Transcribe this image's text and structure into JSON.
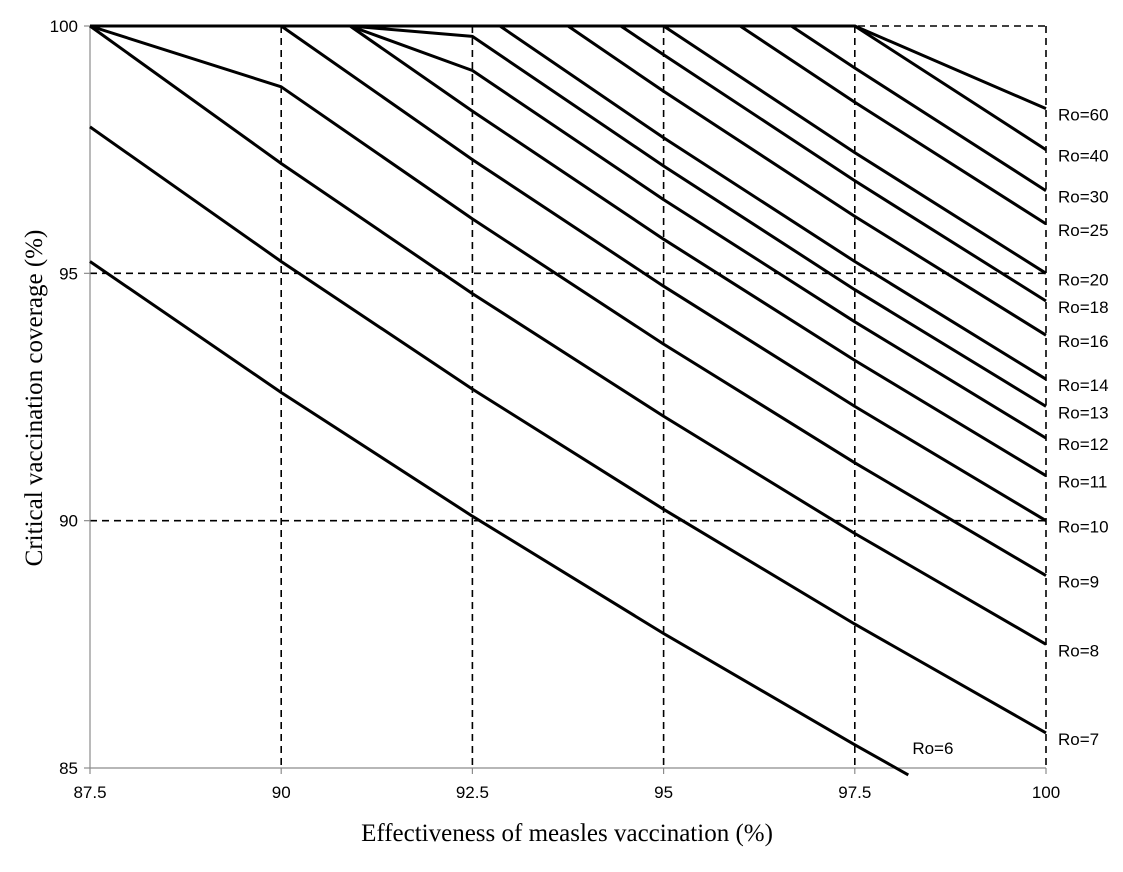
{
  "chart_data": {
    "type": "line",
    "title": "",
    "xlabel": "Effectiveness of measles vaccination (%)",
    "ylabel": "Critical  vaccination  coverage  (%)",
    "xlim": [
      87.5,
      100
    ],
    "ylim": [
      85,
      100
    ],
    "x_ticks": [
      "87.5",
      "90",
      "92.5",
      "95",
      "97.5",
      "100"
    ],
    "y_ticks": [
      "85",
      "90",
      "95",
      "100"
    ],
    "grid": true,
    "series": [
      {
        "name": "Ro=6",
        "x": [
          87.5,
          90,
          92.5,
          95,
          97.5,
          98.2
        ],
        "y": [
          95.24,
          92.59,
          90.09,
          87.72,
          85.47,
          84.86
        ]
      },
      {
        "name": "Ro=7",
        "x": [
          87.5,
          90,
          92.5,
          95,
          97.5,
          100
        ],
        "y": [
          97.96,
          95.24,
          92.66,
          90.23,
          87.91,
          85.71
        ]
      },
      {
        "name": "Ro=8",
        "x": [
          87.5,
          90,
          92.5,
          95,
          97.5,
          100
        ],
        "y": [
          100,
          97.22,
          94.59,
          92.11,
          89.74,
          87.5
        ]
      },
      {
        "name": "Ro=9",
        "x": [
          87.5,
          90,
          92.5,
          95,
          97.5,
          100
        ],
        "y": [
          100,
          98.77,
          96.1,
          93.57,
          91.17,
          88.89
        ]
      },
      {
        "name": "Ro=10",
        "x": [
          87.5,
          90.0,
          92.5,
          95,
          97.5,
          100
        ],
        "y": [
          100,
          100,
          97.3,
          94.74,
          92.31,
          90.0
        ]
      },
      {
        "name": "Ro=11",
        "x": [
          87.5,
          90.9,
          92.5,
          95,
          97.5,
          100
        ],
        "y": [
          100,
          100,
          98.28,
          95.69,
          93.24,
          90.91
        ]
      },
      {
        "name": "Ro=12",
        "x": [
          87.5,
          90.9,
          92.5,
          95,
          97.5,
          100
        ],
        "y": [
          100,
          100,
          99.1,
          96.49,
          94.02,
          91.67
        ]
      },
      {
        "name": "Ro=13",
        "x": [
          87.5,
          90.9,
          92.5,
          95,
          97.5,
          100
        ],
        "y": [
          100,
          100,
          99.79,
          97.17,
          94.67,
          92.31
        ]
      },
      {
        "name": "Ro=14",
        "x": [
          87.5,
          90.9,
          92.86,
          95,
          97.5,
          100
        ],
        "y": [
          100,
          100,
          100,
          97.74,
          95.24,
          92.86
        ]
      },
      {
        "name": "Ro=16",
        "x": [
          87.5,
          90.9,
          93.75,
          95,
          97.5,
          100
        ],
        "y": [
          100,
          100,
          100,
          98.68,
          96.15,
          93.75
        ]
      },
      {
        "name": "Ro=18",
        "x": [
          87.5,
          90.9,
          94.44,
          95,
          97.5,
          100
        ],
        "y": [
          100,
          100,
          100,
          99.42,
          96.87,
          94.44
        ]
      },
      {
        "name": "Ro=20",
        "x": [
          87.5,
          90.9,
          95,
          97.5,
          100
        ],
        "y": [
          100,
          100,
          100,
          97.44,
          95.0
        ]
      },
      {
        "name": "Ro=25",
        "x": [
          87.5,
          90.9,
          96,
          97.5,
          100
        ],
        "y": [
          100,
          100,
          100,
          98.46,
          96.0
        ]
      },
      {
        "name": "Ro=30",
        "x": [
          87.5,
          90.9,
          96.67,
          97.5,
          100
        ],
        "y": [
          100,
          100,
          100,
          99.15,
          96.67
        ]
      },
      {
        "name": "Ro=40",
        "x": [
          87.5,
          97.5,
          100
        ],
        "y": [
          100,
          100,
          97.5
        ]
      },
      {
        "name": "Ro=60",
        "x": [
          87.5,
          97.5,
          100
        ],
        "y": [
          100,
          100,
          98.33
        ]
      }
    ]
  }
}
